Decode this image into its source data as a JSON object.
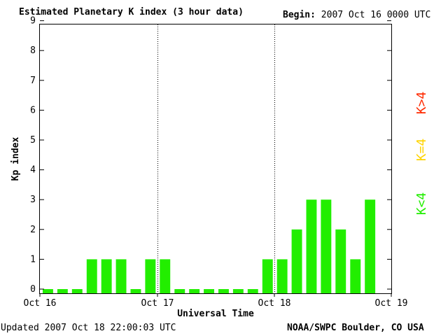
{
  "header": {
    "title": "Estimated Planetary K index (3 hour data)",
    "begin_label": "Begin:",
    "begin_value": "2007 Oct 16 0000 UTC"
  },
  "footer": {
    "updated_label": "Updated",
    "updated_value": "2007 Oct 18 22:00:03 UTC",
    "credit": "NOAA/SWPC Boulder, CO USA"
  },
  "legend": [
    {
      "label": "K>4",
      "color": "#ff2a00"
    },
    {
      "label": "K=4",
      "color": "#ffd400"
    },
    {
      "label": "K<4",
      "color": "#22ee00"
    }
  ],
  "chart_data": {
    "type": "bar",
    "title": "Estimated Planetary K index (3 hour data)",
    "xlabel": "Universal Time",
    "ylabel": "Kp index",
    "ylim": [
      0,
      9
    ],
    "yticks": [
      "0",
      "1",
      "2",
      "3",
      "4",
      "5",
      "6",
      "7",
      "8",
      "9"
    ],
    "xticks": [
      "Oct 16",
      "Oct 17",
      "Oct 18",
      "Oct 19"
    ],
    "bar_color": "#22ee00",
    "grid": "dotted vertical day separators",
    "values": [
      0,
      0,
      0,
      1,
      1,
      1,
      0,
      1,
      1,
      0,
      0,
      0,
      0,
      0,
      0,
      1,
      1,
      2,
      3,
      3,
      2,
      1,
      3
    ]
  }
}
